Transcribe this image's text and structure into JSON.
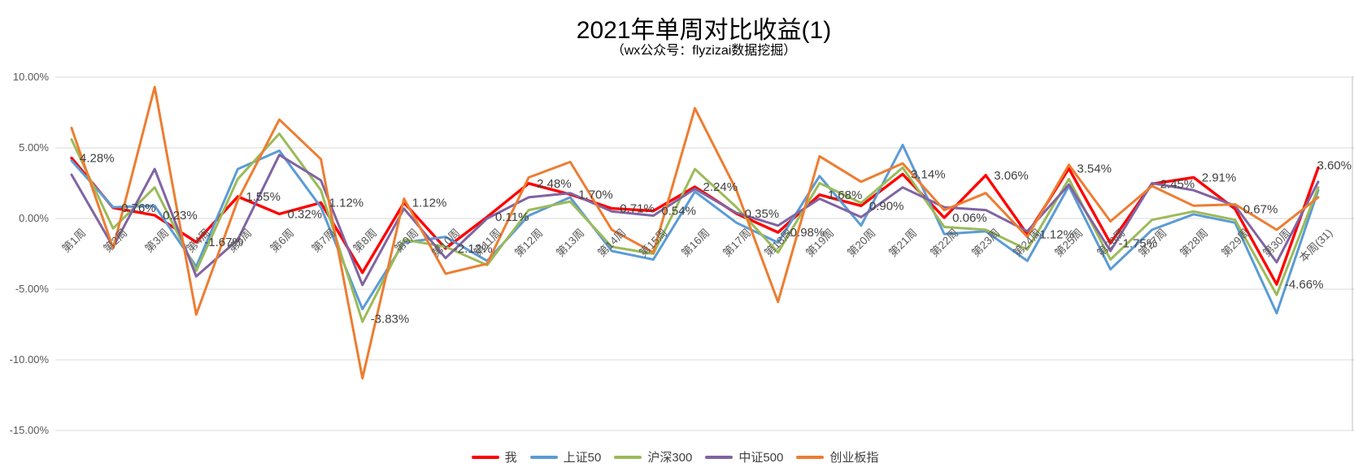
{
  "title": "2021年单周对比收益(1)",
  "subtitle": "（wx公众号：flyzizai数据挖掘）",
  "chart_data": {
    "type": "line",
    "title": "2021年单周对比收益(1)",
    "subtitle": "（wx公众号：flyzizai数据挖掘）",
    "categories": [
      "第1周",
      "第2周",
      "第3周",
      "第4周",
      "第5周",
      "第6周",
      "第7周",
      "第8周",
      "第9周",
      "第10周",
      "第11周",
      "第12周",
      "第13周",
      "第14周",
      "第15周",
      "第16周",
      "第17周",
      "第18周",
      "第19周",
      "第20周",
      "第21周",
      "第22周",
      "第23周",
      "第24周",
      "第25周",
      "第26周",
      "第27周",
      "第28周",
      "第29周",
      "第30周",
      "本周(31)"
    ],
    "y_axis": {
      "tick_labels": [
        "10.00%",
        "5.00%",
        "0.00%",
        "-5.00%",
        "-10.00%",
        "-15.00%"
      ],
      "max": 10,
      "min": -15,
      "step": 5,
      "unit": "%"
    },
    "grid": true,
    "legend_position": "bottom",
    "series": [
      {
        "name": "我",
        "color": "#FF0000",
        "values": [
          4.28,
          0.76,
          0.23,
          -1.67,
          1.55,
          0.32,
          1.12,
          -3.83,
          1.12,
          -2.12,
          0.11,
          2.48,
          1.7,
          0.71,
          0.54,
          2.24,
          0.35,
          -0.98,
          1.68,
          0.9,
          3.14,
          0.06,
          3.06,
          -1.12,
          3.54,
          -1.75,
          2.45,
          2.91,
          0.67,
          -4.66,
          3.6
        ],
        "labels": [
          "4.28%",
          "0.76%",
          "0.23%",
          "-1.67%",
          "1.55%",
          "0.32%",
          "1.12%",
          "-3.83%",
          "1.12%",
          "-2.12%",
          "0.11%",
          "2.48%",
          "1.70%",
          "0.71%",
          "0.54%",
          "2.24%",
          "0.35%",
          "-0.98%",
          "1.68%",
          "0.90%",
          "3.14%",
          "0.06%",
          "3.06%",
          "-1.12%",
          "3.54%",
          "-1.75%",
          "2.45%",
          "2.91%",
          "0.67%",
          "-4.66%",
          "3.60%"
        ]
      },
      {
        "name": "上证50",
        "color": "#5B9BD5",
        "values": [
          4.1,
          0.8,
          0.9,
          -3.4,
          3.5,
          4.8,
          0.8,
          -6.4,
          -1.7,
          -1.3,
          -3.0,
          0.2,
          1.5,
          -2.3,
          -2.9,
          1.9,
          -0.3,
          -1.7,
          3.0,
          -0.5,
          5.2,
          -1.1,
          -0.9,
          -3.0,
          2.3,
          -3.6,
          -0.8,
          0.3,
          -0.3,
          -6.7,
          2.0
        ]
      },
      {
        "name": "沪深300",
        "color": "#9BBB59",
        "values": [
          5.6,
          -0.7,
          2.2,
          -3.7,
          2.8,
          6.0,
          2.0,
          -7.3,
          -1.5,
          -2.0,
          -3.3,
          0.6,
          1.2,
          -2.0,
          -2.5,
          3.5,
          0.8,
          -2.4,
          2.5,
          1.1,
          3.6,
          -0.6,
          -0.8,
          -2.2,
          2.8,
          -2.9,
          -0.1,
          0.5,
          -0.1,
          -5.4,
          2.2
        ]
      },
      {
        "name": "中证500",
        "color": "#8064A2",
        "values": [
          3.1,
          -2.0,
          3.5,
          -4.1,
          -1.5,
          4.5,
          2.7,
          -4.7,
          0.7,
          -2.8,
          0.0,
          1.5,
          1.8,
          0.5,
          0.2,
          2.1,
          0.4,
          -0.5,
          1.4,
          0.1,
          2.2,
          0.8,
          0.6,
          -0.9,
          2.4,
          -2.3,
          2.5,
          2.0,
          0.9,
          -3.1,
          2.6
        ]
      },
      {
        "name": "创业板指",
        "color": "#ED7D31",
        "values": [
          6.4,
          -2.1,
          9.3,
          -6.8,
          1.3,
          7.0,
          4.2,
          -11.3,
          1.4,
          -3.9,
          -3.2,
          2.9,
          4.0,
          -0.8,
          -2.4,
          7.8,
          2.0,
          -5.9,
          4.4,
          2.6,
          3.9,
          0.6,
          1.8,
          -1.3,
          3.8,
          -0.2,
          2.3,
          0.9,
          1.0,
          -0.8,
          1.5
        ]
      }
    ],
    "styling": {
      "gridline_color": "#D9D9D9",
      "axis_text_color": "#595959",
      "data_label_color": "#3F3F3F",
      "right_axis_color": "#BFBFBF"
    }
  }
}
